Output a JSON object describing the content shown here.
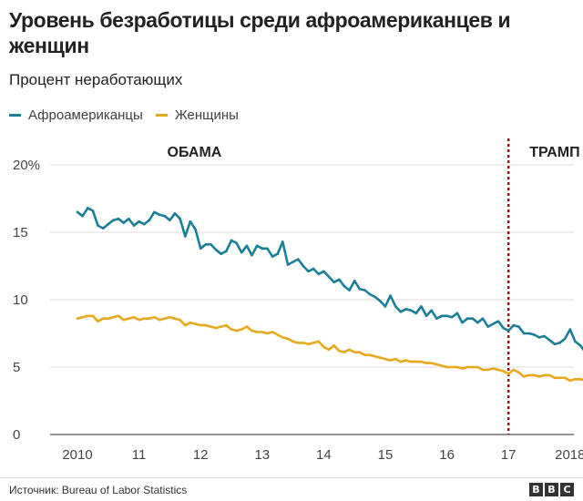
{
  "title": "Уровень безработицы среди афроамериканцев и женщин",
  "subtitle": "Процент неработающих",
  "source": "Источник: Bureau of Labor Statistics",
  "logo_letters": [
    "B",
    "B",
    "C"
  ],
  "chart_data": {
    "type": "line",
    "title": "Уровень безработицы среди афроамериканцев и женщин",
    "subtitle": "Процент неработающих",
    "x_range": [
      2010.0,
      2018.75
    ],
    "ylim": [
      0,
      20
    ],
    "grid": true,
    "legend_position": "top-left",
    "y_ticks": [
      {
        "value": 0,
        "label": "0"
      },
      {
        "value": 5,
        "label": "5"
      },
      {
        "value": 10,
        "label": "10"
      },
      {
        "value": 15,
        "label": "15"
      },
      {
        "value": 20,
        "label": "20%"
      }
    ],
    "x_ticks": [
      {
        "value": 2010,
        "label": "2010"
      },
      {
        "value": 2011,
        "label": "11"
      },
      {
        "value": 2012,
        "label": "12"
      },
      {
        "value": 2013,
        "label": "13"
      },
      {
        "value": 2014,
        "label": "14"
      },
      {
        "value": 2015,
        "label": "15"
      },
      {
        "value": 2016,
        "label": "16"
      },
      {
        "value": 2017,
        "label": "17"
      },
      {
        "value": 2018,
        "label": "2018"
      }
    ],
    "annotations": [
      {
        "label": "ОБАМА",
        "x": 2011.9
      },
      {
        "label": "ТРАМП",
        "x": 2017.75
      }
    ],
    "divider_x": 2017.0,
    "series": [
      {
        "name": "Афроамериканцы",
        "color": "#1b7f97",
        "x": [
          2010.0,
          2010.083,
          2010.167,
          2010.25,
          2010.333,
          2010.417,
          2010.5,
          2010.583,
          2010.667,
          2010.75,
          2010.833,
          2010.917,
          2011.0,
          2011.083,
          2011.167,
          2011.25,
          2011.333,
          2011.417,
          2011.5,
          2011.583,
          2011.667,
          2011.75,
          2011.833,
          2011.917,
          2012.0,
          2012.083,
          2012.167,
          2012.25,
          2012.333,
          2012.417,
          2012.5,
          2012.583,
          2012.667,
          2012.75,
          2012.833,
          2012.917,
          2013.0,
          2013.083,
          2013.167,
          2013.25,
          2013.333,
          2013.417,
          2013.5,
          2013.583,
          2013.667,
          2013.75,
          2013.833,
          2013.917,
          2014.0,
          2014.083,
          2014.167,
          2014.25,
          2014.333,
          2014.417,
          2014.5,
          2014.583,
          2014.667,
          2014.75,
          2014.833,
          2014.917,
          2015.0,
          2015.083,
          2015.167,
          2015.25,
          2015.333,
          2015.417,
          2015.5,
          2015.583,
          2015.667,
          2015.75,
          2015.833,
          2015.917,
          2016.0,
          2016.083,
          2016.167,
          2016.25,
          2016.333,
          2016.417,
          2016.5,
          2016.583,
          2016.667,
          2016.75,
          2016.833,
          2016.917,
          2017.0,
          2017.083,
          2017.167,
          2017.25,
          2017.333,
          2017.417,
          2017.5,
          2017.583,
          2017.667,
          2017.75,
          2017.833,
          2017.917,
          2018.0,
          2018.083,
          2018.167,
          2018.25,
          2018.333,
          2018.417,
          2018.5,
          2018.583,
          2018.667
        ],
        "values": [
          16.5,
          16.2,
          16.8,
          16.6,
          15.5,
          15.3,
          15.6,
          15.9,
          16.0,
          15.7,
          16.0,
          15.5,
          15.8,
          15.6,
          15.9,
          16.5,
          16.3,
          16.2,
          15.9,
          16.4,
          16.0,
          14.7,
          15.8,
          15.2,
          13.8,
          14.1,
          14.1,
          13.7,
          13.4,
          13.6,
          14.4,
          14.2,
          13.5,
          14.0,
          13.3,
          14.0,
          13.8,
          13.8,
          13.2,
          13.4,
          14.3,
          12.6,
          12.8,
          13.0,
          12.5,
          12.1,
          12.3,
          11.9,
          12.1,
          11.7,
          11.3,
          11.5,
          11.0,
          10.7,
          11.4,
          10.8,
          10.7,
          10.4,
          10.2,
          9.9,
          9.5,
          10.3,
          9.5,
          9.1,
          9.3,
          9.2,
          9.0,
          9.5,
          8.8,
          9.2,
          8.6,
          8.8,
          8.8,
          8.7,
          9.0,
          8.3,
          8.6,
          8.6,
          8.3,
          8.6,
          8.0,
          8.2,
          8.4,
          7.9,
          7.7,
          8.1,
          8.0,
          7.5,
          7.5,
          7.4,
          7.2,
          7.3,
          7.0,
          6.7,
          6.8,
          7.1,
          7.8,
          6.9,
          6.6,
          6.1,
          6.6,
          6.5,
          6.3,
          6.0,
          6.0
        ]
      },
      {
        "name": "Женщины",
        "color": "#e8a81c",
        "x": [
          2010.0,
          2010.083,
          2010.167,
          2010.25,
          2010.333,
          2010.417,
          2010.5,
          2010.583,
          2010.667,
          2010.75,
          2010.833,
          2010.917,
          2011.0,
          2011.083,
          2011.167,
          2011.25,
          2011.333,
          2011.417,
          2011.5,
          2011.583,
          2011.667,
          2011.75,
          2011.833,
          2011.917,
          2012.0,
          2012.083,
          2012.167,
          2012.25,
          2012.333,
          2012.417,
          2012.5,
          2012.583,
          2012.667,
          2012.75,
          2012.833,
          2012.917,
          2013.0,
          2013.083,
          2013.167,
          2013.25,
          2013.333,
          2013.417,
          2013.5,
          2013.583,
          2013.667,
          2013.75,
          2013.833,
          2013.917,
          2014.0,
          2014.083,
          2014.167,
          2014.25,
          2014.333,
          2014.417,
          2014.5,
          2014.583,
          2014.667,
          2014.75,
          2014.833,
          2014.917,
          2015.0,
          2015.083,
          2015.167,
          2015.25,
          2015.333,
          2015.417,
          2015.5,
          2015.583,
          2015.667,
          2015.75,
          2015.833,
          2015.917,
          2016.0,
          2016.083,
          2016.167,
          2016.25,
          2016.333,
          2016.417,
          2016.5,
          2016.583,
          2016.667,
          2016.75,
          2016.833,
          2016.917,
          2017.0,
          2017.083,
          2017.167,
          2017.25,
          2017.333,
          2017.417,
          2017.5,
          2017.583,
          2017.667,
          2017.75,
          2017.833,
          2017.917,
          2018.0,
          2018.083,
          2018.167,
          2018.25,
          2018.333,
          2018.417,
          2018.5,
          2018.583,
          2018.667
        ],
        "values": [
          8.6,
          8.7,
          8.8,
          8.8,
          8.4,
          8.6,
          8.6,
          8.7,
          8.8,
          8.5,
          8.6,
          8.7,
          8.5,
          8.6,
          8.6,
          8.7,
          8.5,
          8.6,
          8.7,
          8.6,
          8.5,
          8.1,
          8.3,
          8.2,
          8.1,
          8.1,
          8.0,
          7.9,
          8.0,
          8.1,
          7.8,
          7.7,
          7.8,
          8.0,
          7.7,
          7.6,
          7.6,
          7.5,
          7.6,
          7.4,
          7.2,
          7.1,
          6.9,
          6.8,
          6.8,
          6.7,
          6.8,
          6.9,
          6.5,
          6.3,
          6.6,
          6.2,
          6.1,
          6.3,
          6.1,
          6.1,
          5.9,
          5.9,
          5.8,
          5.7,
          5.6,
          5.5,
          5.6,
          5.4,
          5.5,
          5.4,
          5.4,
          5.4,
          5.3,
          5.3,
          5.2,
          5.1,
          5.0,
          5.0,
          5.0,
          4.9,
          5.0,
          5.0,
          5.0,
          4.8,
          4.8,
          4.9,
          4.8,
          4.7,
          4.5,
          4.8,
          4.6,
          4.3,
          4.4,
          4.4,
          4.3,
          4.4,
          4.4,
          4.2,
          4.2,
          4.2,
          4.0,
          4.1,
          4.1,
          4.0,
          3.9,
          4.0,
          3.7,
          3.7,
          4.0
        ]
      }
    ]
  }
}
